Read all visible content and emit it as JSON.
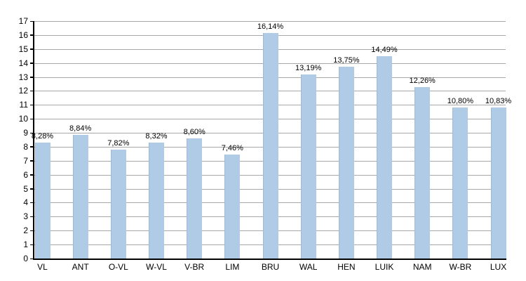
{
  "chart_data": {
    "type": "bar",
    "title": "",
    "xlabel": "",
    "ylabel": "",
    "categories": [
      "VL",
      "ANT",
      "O-VL",
      "W-VL",
      "V-BR",
      "LIM",
      "BRU",
      "WAL",
      "HEN",
      "LUIK",
      "NAM",
      "W-BR",
      "LUX"
    ],
    "values": [
      8.28,
      8.84,
      7.82,
      8.32,
      8.6,
      7.46,
      16.14,
      13.19,
      13.75,
      14.49,
      12.26,
      10.8,
      10.83
    ],
    "value_labels": [
      "8,28%",
      "8,84%",
      "7,82%",
      "8,32%",
      "8,60%",
      "7,46%",
      "16,14%",
      "13,19%",
      "13,75%",
      "14,49%",
      "12,26%",
      "10,80%",
      "10,83%"
    ],
    "ylim": [
      0,
      17
    ],
    "ytick_step": 1,
    "ytick_labels": [
      "0",
      "1",
      "2",
      "3",
      "4",
      "5",
      "6",
      "7",
      "8",
      "9",
      "10",
      "11",
      "12",
      "13",
      "14",
      "15",
      "16",
      "17"
    ],
    "grid": true,
    "legend": false,
    "colors": {
      "bar_fill": "#b0cbe6",
      "bar_border": "#9db9d4",
      "gridline": "#a8a8a8",
      "axis": "#000000",
      "text": "#000000",
      "background": "#ffffff"
    }
  }
}
